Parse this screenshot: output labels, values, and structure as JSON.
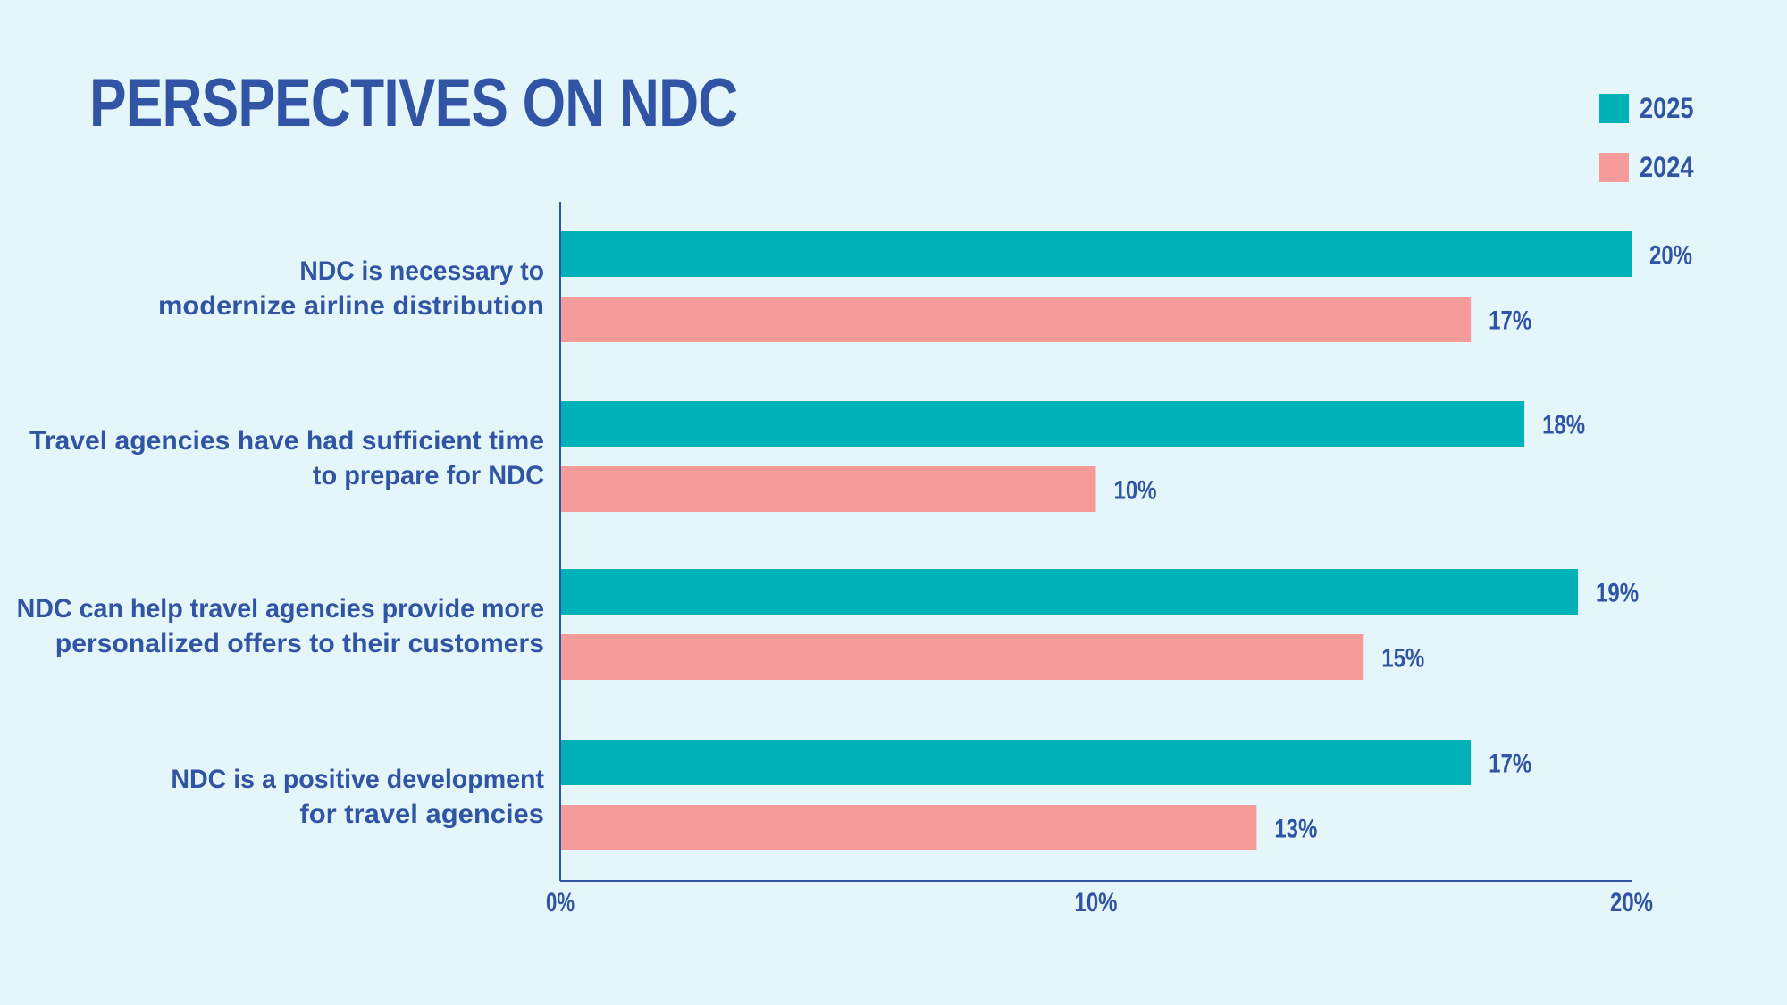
{
  "title": "PERSPECTIVES ON NDC",
  "legend": [
    {
      "label": "2025",
      "color": "#00b2b7"
    },
    {
      "label": "2024",
      "color": "#f59c9b"
    }
  ],
  "chart_data": {
    "type": "bar",
    "orientation": "horizontal",
    "title": "PERSPECTIVES ON NDC",
    "categories": [
      [
        "NDC is necessary to",
        "modernize airline distribution"
      ],
      [
        "Travel agencies have had sufficient time",
        "to prepare for NDC"
      ],
      [
        "NDC can help travel agencies provide more",
        "personalized offers to their customers"
      ],
      [
        "NDC is a positive development",
        "for travel agencies"
      ]
    ],
    "series": [
      {
        "name": "2025",
        "color": "#00b2b7",
        "values": [
          20,
          18,
          19,
          17
        ],
        "labels": [
          "20%",
          "18%",
          "19%",
          "17%"
        ]
      },
      {
        "name": "2024",
        "color": "#f59c9b",
        "values": [
          17,
          10,
          15,
          13
        ],
        "labels": [
          "17%",
          "10%",
          "15%",
          "13%"
        ]
      }
    ],
    "xlim": [
      0,
      20
    ],
    "xticks": [
      {
        "value": 0,
        "label": "0%"
      },
      {
        "value": 10,
        "label": "10%"
      },
      {
        "value": 20,
        "label": "20%"
      }
    ],
    "xlabel": "",
    "ylabel": "",
    "grid": false,
    "legend_position": "top-right",
    "text_color": "#3155a4",
    "axis_color": "#3155a4"
  }
}
